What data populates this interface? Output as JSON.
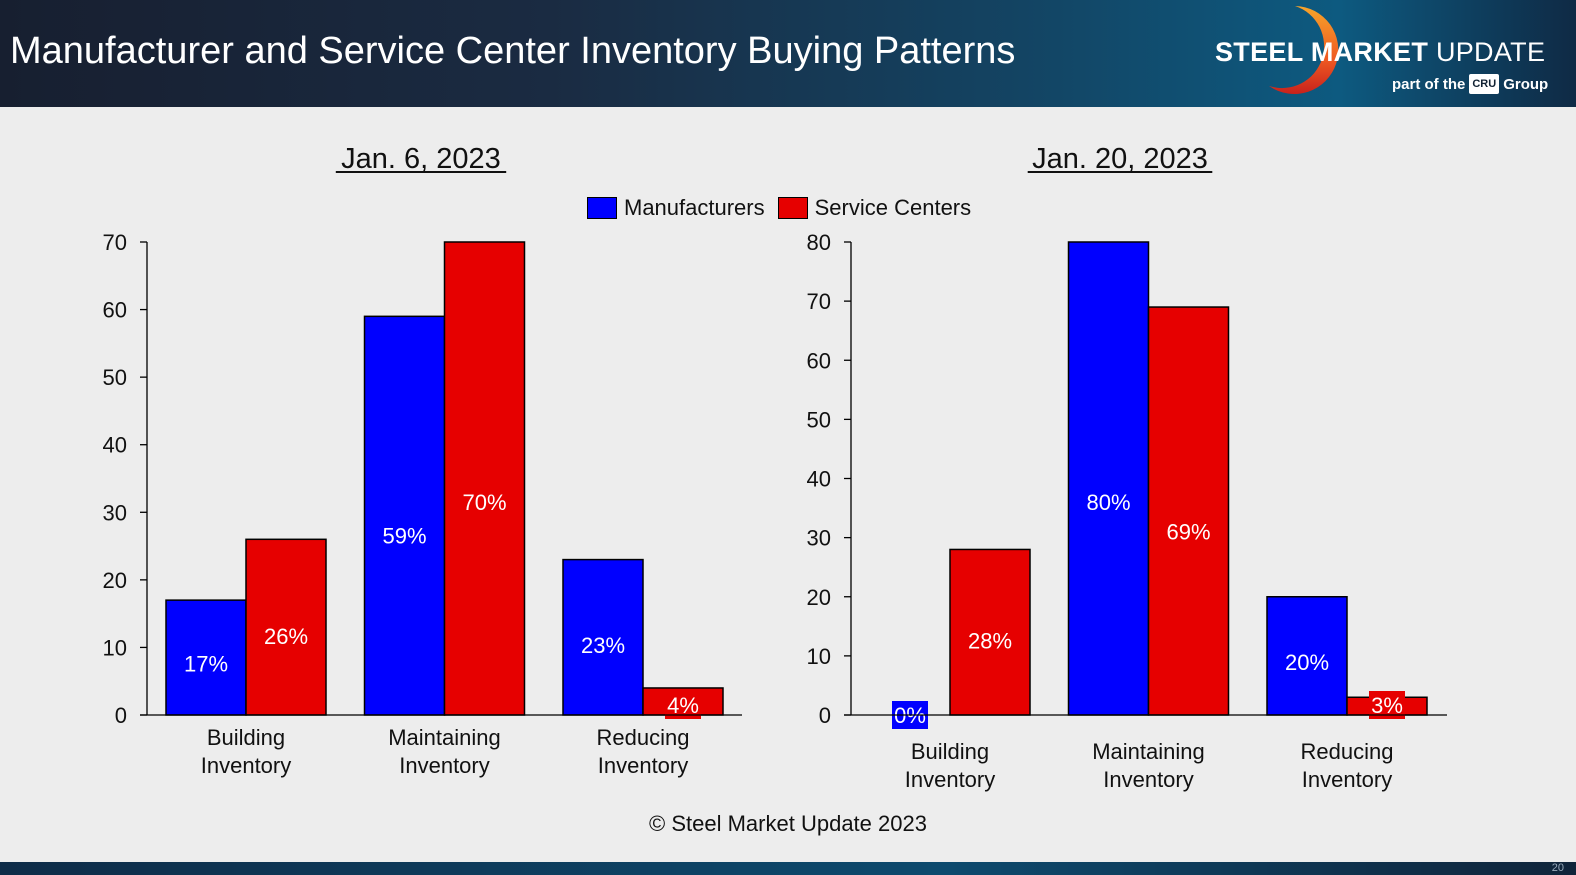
{
  "header": {
    "title": "Manufacturer and Service Center Inventory Buying Patterns",
    "logo": {
      "bold": "STEEL MARKET",
      "light": "UPDATE",
      "sub_prefix": "part of the",
      "cru": "CRU",
      "sub_suffix": "Group"
    }
  },
  "legend": [
    {
      "name": "Manufacturers",
      "color": "#0000ff"
    },
    {
      "name": "Service Centers",
      "color": "#e60000"
    }
  ],
  "copyright": "© Steel Market Update 2023",
  "page_number": "20",
  "chart_data": [
    {
      "type": "bar",
      "title": "Jan. 6, 2023",
      "categories": [
        "Building Inventory",
        "Maintaining Inventory",
        "Reducing Inventory"
      ],
      "category_lines": [
        [
          "Building",
          "Inventory"
        ],
        [
          "Maintaining",
          "Inventory"
        ],
        [
          "Reducing",
          "Inventory"
        ]
      ],
      "series": [
        {
          "name": "Manufacturers",
          "color": "#0000ff",
          "values": [
            17,
            59,
            23
          ],
          "labels": [
            "17%",
            "59%",
            "23%"
          ]
        },
        {
          "name": "Service Centers",
          "color": "#e60000",
          "values": [
            26,
            70,
            4
          ],
          "labels": [
            "26%",
            "70%",
            "4%"
          ]
        }
      ],
      "ylim": [
        0,
        70
      ],
      "yticks": [
        0,
        10,
        20,
        30,
        40,
        50,
        60,
        70
      ],
      "xlabel": "",
      "ylabel": "",
      "grid": false,
      "legend": "top-center"
    },
    {
      "type": "bar",
      "title": "Jan. 20, 2023",
      "categories": [
        "Building Inventory",
        "Maintaining Inventory",
        "Reducing Inventory"
      ],
      "category_lines": [
        [
          "Building",
          "Inventory"
        ],
        [
          "Maintaining",
          "Inventory"
        ],
        [
          "Reducing",
          "Inventory"
        ]
      ],
      "series": [
        {
          "name": "Manufacturers",
          "color": "#0000ff",
          "values": [
            0,
            80,
            20
          ],
          "labels": [
            "0%",
            "80%",
            "20%"
          ]
        },
        {
          "name": "Service Centers",
          "color": "#e60000",
          "values": [
            28,
            69,
            3
          ],
          "labels": [
            "28%",
            "69%",
            "3%"
          ]
        }
      ],
      "ylim": [
        0,
        80
      ],
      "yticks": [
        0,
        10,
        20,
        30,
        40,
        50,
        60,
        70,
        80
      ],
      "xlabel": "",
      "ylabel": "",
      "grid": false,
      "legend": "top-center"
    }
  ]
}
